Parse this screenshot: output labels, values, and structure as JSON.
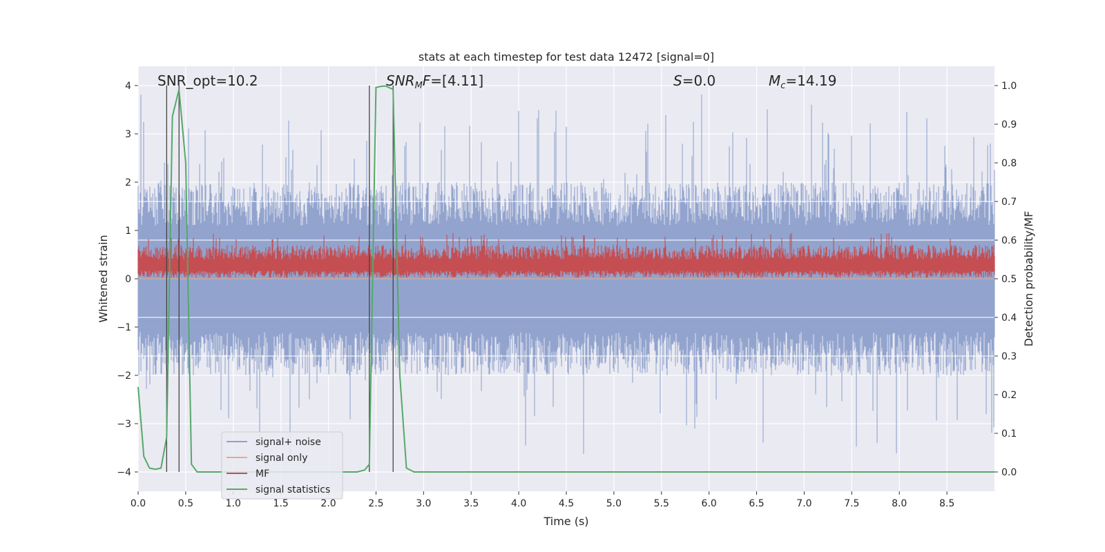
{
  "chart_data": {
    "type": "line",
    "title": "stats at each timestep for test data 12472 [signal=0]",
    "xlabel": "Time (s)",
    "ylabel_left": "Whitened strain",
    "ylabel_right": "Detection probability/MF",
    "xlim": [
      0.0,
      9.0
    ],
    "ylim_left": [
      -4.4,
      4.4
    ],
    "ylim_right": [
      -0.05,
      1.05
    ],
    "xticks": [
      "0.0",
      "0.5",
      "1.0",
      "1.5",
      "2.0",
      "2.5",
      "3.0",
      "3.5",
      "4.0",
      "4.5",
      "5.0",
      "5.5",
      "6.0",
      "6.5",
      "7.0",
      "7.5",
      "8.0",
      "8.5"
    ],
    "xtick_values": [
      0.0,
      0.5,
      1.0,
      1.5,
      2.0,
      2.5,
      3.0,
      3.5,
      4.0,
      4.5,
      5.0,
      5.5,
      6.0,
      6.5,
      7.0,
      7.5,
      8.0,
      8.5
    ],
    "yticks_left": [
      "4",
      "3",
      "2",
      "1",
      "0",
      "−1",
      "−2",
      "−3",
      "−4"
    ],
    "ytick_values_left": [
      4,
      3,
      2,
      1,
      0,
      -1,
      -2,
      -3,
      -4
    ],
    "yticks_right": [
      "1.0",
      "0.9",
      "0.8",
      "0.7",
      "0.6",
      "0.5",
      "0.4",
      "0.3",
      "0.2",
      "0.1",
      "0.0"
    ],
    "ytick_values_right": [
      1.0,
      0.9,
      0.8,
      0.7,
      0.6,
      0.5,
      0.4,
      0.3,
      0.2,
      0.1,
      0.0
    ],
    "annotations": {
      "snr_opt": "SNR_opt=10.2",
      "snr_mf_base": "SNR",
      "snr_mf_sub": "M",
      "snr_mf_rest": "F=[4.11]",
      "s_label": "S",
      "s_value": "=0.0",
      "mc_base": "M",
      "mc_sub": "c",
      "mc_value": "=14.19"
    },
    "legend": {
      "location": "lower-left",
      "entries": [
        {
          "label": "signal+ noise",
          "color": "#8da0cb"
        },
        {
          "label": "signal only",
          "color": "#e8a98b"
        },
        {
          "label": "MF",
          "color": "#c44e52"
        },
        {
          "label": "signal statistics",
          "color": "#55a868"
        }
      ]
    },
    "vertical_markers_time": [
      0.3,
      0.43,
      2.43,
      2.68
    ],
    "series": [
      {
        "name": "signal statistics",
        "axis": "right",
        "x": [
          0.0,
          0.06,
          0.12,
          0.18,
          0.24,
          0.3,
          0.36,
          0.43,
          0.5,
          0.56,
          0.62,
          0.7,
          1.0,
          1.5,
          2.0,
          2.3,
          2.38,
          2.43,
          2.5,
          2.55,
          2.6,
          2.68,
          2.75,
          2.82,
          2.9,
          3.5,
          4.0,
          5.0,
          6.0,
          7.0,
          8.0,
          9.0
        ],
        "y": [
          0.22,
          0.04,
          0.01,
          0.007,
          0.01,
          0.09,
          0.92,
          0.99,
          0.8,
          0.02,
          0.0,
          0.0,
          0.0,
          0.0,
          0.0,
          0.0,
          0.005,
          0.02,
          0.995,
          0.998,
          0.999,
          0.99,
          0.25,
          0.01,
          0.0,
          0.0,
          0.0,
          0.0,
          0.0,
          0.0,
          0.0,
          0.0
        ]
      },
      {
        "name": "signal+ noise",
        "axis": "left",
        "band_lower_typical": -1.6,
        "band_upper_typical": 1.6,
        "peak_upper": 3.9,
        "peak_lower": -3.9
      },
      {
        "name": "MF",
        "axis": "left",
        "band_lower_typical": 0.1,
        "band_upper_typical": 0.6,
        "peak_upper": 0.95
      },
      {
        "name": "signal only",
        "axis": "left",
        "values_constant": 0.0
      }
    ],
    "grid": true,
    "colors": {
      "plot_bg": "#eaeaf2",
      "grid": "#ffffff",
      "noise": "#8da0cb",
      "mf": "#c44e52",
      "stat": "#55a868",
      "signal_only": "#e8a98b",
      "marker": "#444444"
    }
  }
}
